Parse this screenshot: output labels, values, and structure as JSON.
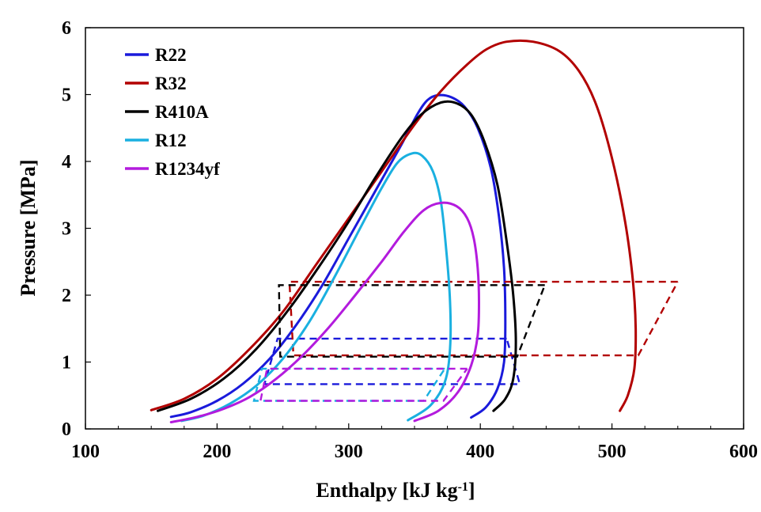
{
  "chart_data": {
    "type": "line",
    "title": "",
    "xlabel": "Enthalpy [kJ kg",
    "xlabel_sup": "-1",
    "xlabel_end": "]",
    "ylabel": "Pressure [MPa]",
    "xlim": [
      100,
      600
    ],
    "ylim": [
      0,
      6
    ],
    "xticks": [
      "100",
      "200",
      "300",
      "400",
      "500",
      "600"
    ],
    "yticks": [
      "0",
      "1",
      "2",
      "3",
      "4",
      "5",
      "6"
    ],
    "grid": false,
    "legend_position": "top-left",
    "series": [
      {
        "name": "R22",
        "color": "#1a1adb",
        "dome": [
          [
            165,
            0.18
          ],
          [
            180,
            0.25
          ],
          [
            200,
            0.42
          ],
          [
            220,
            0.68
          ],
          [
            240,
            1.05
          ],
          [
            260,
            1.55
          ],
          [
            280,
            2.15
          ],
          [
            300,
            2.85
          ],
          [
            320,
            3.55
          ],
          [
            340,
            4.25
          ],
          [
            352,
            4.7
          ],
          [
            360,
            4.92
          ],
          [
            368,
            4.99
          ],
          [
            378,
            4.96
          ],
          [
            388,
            4.82
          ],
          [
            398,
            4.5
          ],
          [
            408,
            3.9
          ],
          [
            414,
            3.2
          ],
          [
            418,
            2.4
          ],
          [
            419,
            1.6
          ],
          [
            418,
            1.0
          ],
          [
            413,
            0.6
          ],
          [
            404,
            0.32
          ],
          [
            393,
            0.17
          ]
        ],
        "cycle": [
          [
            420,
            1.35
          ],
          [
            246,
            1.35
          ],
          [
            236,
            0.67
          ],
          [
            430,
            0.67
          ],
          [
            420,
            1.35
          ]
        ]
      },
      {
        "name": "R32",
        "color": "#b20000",
        "dome": [
          [
            150,
            0.28
          ],
          [
            175,
            0.45
          ],
          [
            200,
            0.75
          ],
          [
            225,
            1.2
          ],
          [
            250,
            1.75
          ],
          [
            275,
            2.45
          ],
          [
            300,
            3.15
          ],
          [
            325,
            3.85
          ],
          [
            350,
            4.55
          ],
          [
            370,
            5.05
          ],
          [
            390,
            5.45
          ],
          [
            405,
            5.68
          ],
          [
            420,
            5.79
          ],
          [
            440,
            5.79
          ],
          [
            460,
            5.65
          ],
          [
            475,
            5.35
          ],
          [
            488,
            4.85
          ],
          [
            500,
            4.05
          ],
          [
            510,
            3.1
          ],
          [
            516,
            2.2
          ],
          [
            518,
            1.5
          ],
          [
            517,
            0.9
          ],
          [
            512,
            0.5
          ],
          [
            506,
            0.27
          ]
        ],
        "cycle": [
          [
            550,
            2.2
          ],
          [
            255,
            2.2
          ],
          [
            258,
            1.1
          ],
          [
            520,
            1.1
          ],
          [
            550,
            2.2
          ]
        ]
      },
      {
        "name": "R410A",
        "color": "#000000",
        "dome": [
          [
            155,
            0.27
          ],
          [
            180,
            0.45
          ],
          [
            205,
            0.75
          ],
          [
            230,
            1.2
          ],
          [
            255,
            1.8
          ],
          [
            280,
            2.5
          ],
          [
            300,
            3.1
          ],
          [
            320,
            3.75
          ],
          [
            340,
            4.35
          ],
          [
            355,
            4.7
          ],
          [
            370,
            4.88
          ],
          [
            382,
            4.87
          ],
          [
            393,
            4.7
          ],
          [
            403,
            4.3
          ],
          [
            413,
            3.65
          ],
          [
            420,
            2.8
          ],
          [
            425,
            2.0
          ],
          [
            427,
            1.3
          ],
          [
            425,
            0.75
          ],
          [
            419,
            0.45
          ],
          [
            410,
            0.27
          ]
        ],
        "cycle": [
          [
            449,
            2.15
          ],
          [
            247,
            2.15
          ],
          [
            248,
            1.08
          ],
          [
            428,
            1.08
          ],
          [
            449,
            2.15
          ]
        ]
      },
      {
        "name": "R12",
        "color": "#1ab0e0",
        "dome": [
          [
            173,
            0.12
          ],
          [
            190,
            0.2
          ],
          [
            210,
            0.38
          ],
          [
            230,
            0.65
          ],
          [
            250,
            1.05
          ],
          [
            270,
            1.6
          ],
          [
            290,
            2.3
          ],
          [
            310,
            3.05
          ],
          [
            325,
            3.6
          ],
          [
            337,
            3.98
          ],
          [
            348,
            4.12
          ],
          [
            356,
            4.08
          ],
          [
            364,
            3.85
          ],
          [
            370,
            3.4
          ],
          [
            374,
            2.7
          ],
          [
            377,
            1.9
          ],
          [
            377,
            1.2
          ],
          [
            373,
            0.7
          ],
          [
            362,
            0.35
          ],
          [
            345,
            0.13
          ]
        ],
        "cycle": [
          [
            373,
            0.9
          ],
          [
            234,
            0.9
          ],
          [
            228,
            0.42
          ],
          [
            357,
            0.42
          ],
          [
            373,
            0.9
          ]
        ]
      },
      {
        "name": "R1234yf",
        "color": "#b31bdd",
        "dome": [
          [
            165,
            0.1
          ],
          [
            185,
            0.18
          ],
          [
            205,
            0.3
          ],
          [
            225,
            0.48
          ],
          [
            245,
            0.75
          ],
          [
            265,
            1.1
          ],
          [
            285,
            1.52
          ],
          [
            305,
            2.0
          ],
          [
            325,
            2.5
          ],
          [
            342,
            2.95
          ],
          [
            357,
            3.27
          ],
          [
            370,
            3.38
          ],
          [
            382,
            3.33
          ],
          [
            390,
            3.15
          ],
          [
            395,
            2.85
          ],
          [
            398,
            2.4
          ],
          [
            399,
            1.9
          ],
          [
            398,
            1.4
          ],
          [
            393,
            0.95
          ],
          [
            383,
            0.55
          ],
          [
            368,
            0.27
          ],
          [
            350,
            0.12
          ]
        ],
        "cycle": [
          [
            390,
            0.9
          ],
          [
            238,
            0.9
          ],
          [
            233,
            0.42
          ],
          [
            372,
            0.42
          ],
          [
            390,
            0.9
          ]
        ]
      }
    ]
  }
}
